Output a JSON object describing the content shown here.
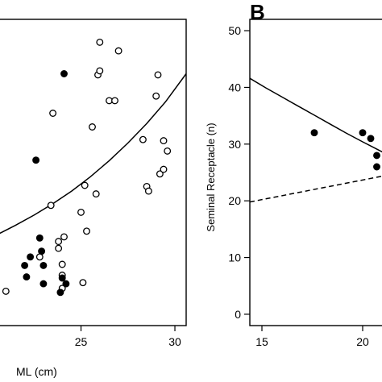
{
  "chart_data": [
    {
      "type": "scatter",
      "panel_label": "",
      "xlabel": "ML (cm)",
      "ylabel": "",
      "xlim": [
        20.6,
        30.6
      ],
      "ylim": [
        -3.5,
        50
      ],
      "xticks": [
        25,
        30
      ],
      "tick_labels_x": [
        "25",
        "30"
      ],
      "series": [
        {
          "marker": "open-circle",
          "points": [
            [
              21.0,
              2.5
            ],
            [
              22.8,
              8.5
            ],
            [
              23.4,
              17.5
            ],
            [
              24.1,
              12.0
            ],
            [
              24.0,
              5.3
            ],
            [
              23.5,
              33.6
            ],
            [
              23.8,
              10.0
            ],
            [
              23.8,
              11.2
            ],
            [
              24.0,
              7.2
            ],
            [
              24.0,
              3.0
            ],
            [
              25.1,
              4.0
            ],
            [
              25.2,
              21.0
            ],
            [
              25.0,
              16.3
            ],
            [
              25.3,
              13.0
            ],
            [
              25.6,
              31.2
            ],
            [
              25.8,
              19.5
            ],
            [
              25.9,
              40.3
            ],
            [
              26.0,
              46.0
            ],
            [
              26.0,
              41.0
            ],
            [
              26.5,
              35.8
            ],
            [
              26.8,
              35.8
            ],
            [
              27.0,
              44.5
            ],
            [
              28.3,
              29.0
            ],
            [
              29.0,
              36.6
            ],
            [
              29.1,
              40.3
            ],
            [
              28.5,
              20.8
            ],
            [
              28.6,
              20.0
            ],
            [
              29.2,
              23.0
            ],
            [
              29.4,
              23.8
            ],
            [
              29.6,
              27.0
            ],
            [
              29.4,
              28.8
            ]
          ]
        },
        {
          "marker": "filled-circle",
          "points": [
            [
              22.6,
              25.4
            ],
            [
              24.1,
              40.5
            ],
            [
              22.8,
              11.8
            ],
            [
              22.9,
              9.5
            ],
            [
              22.0,
              7.0
            ],
            [
              22.1,
              5.0
            ],
            [
              23.0,
              7.0
            ],
            [
              23.9,
              2.3
            ],
            [
              23.0,
              3.8
            ],
            [
              24.0,
              4.8
            ],
            [
              24.2,
              3.8
            ],
            [
              22.3,
              8.5
            ]
          ]
        }
      ],
      "curves": [
        {
          "style": "solid",
          "points": [
            [
              20.6,
              12.5
            ],
            [
              21.5,
              14.0
            ],
            [
              22.5,
              15.8
            ],
            [
              23.5,
              17.8
            ],
            [
              24.5,
              20.0
            ],
            [
              25.5,
              22.5
            ],
            [
              26.5,
              25.3
            ],
            [
              27.5,
              28.4
            ],
            [
              28.5,
              31.8
            ],
            [
              29.5,
              35.6
            ],
            [
              30.6,
              40.5
            ]
          ]
        }
      ]
    },
    {
      "type": "scatter",
      "panel_label": "B",
      "xlabel": "",
      "ylabel": "Seminal Receptacle (n)",
      "xlim": [
        14.4,
        21.2
      ],
      "ylim": [
        -2,
        52
      ],
      "yticks": [
        0,
        10,
        20,
        30,
        40,
        50
      ],
      "tick_labels_y": [
        "0",
        "10",
        "20",
        "30",
        "40",
        "50"
      ],
      "xticks": [
        15,
        20
      ],
      "tick_labels_x": [
        "15",
        "20"
      ],
      "series": [
        {
          "marker": "filled-circle",
          "points": [
            [
              17.6,
              32.0
            ],
            [
              20.0,
              32.0
            ],
            [
              20.4,
              31.0
            ],
            [
              20.7,
              28.0
            ],
            [
              20.7,
              26.0
            ]
          ]
        }
      ],
      "curves": [
        {
          "style": "solid",
          "points": [
            [
              14.4,
              41.6
            ],
            [
              15.2,
              39.9
            ],
            [
              16.0,
              38.3
            ],
            [
              16.8,
              36.7
            ],
            [
              17.6,
              35.1
            ],
            [
              18.4,
              33.5
            ],
            [
              19.2,
              31.9
            ],
            [
              20.0,
              30.4
            ],
            [
              20.6,
              29.3
            ],
            [
              21.2,
              28.2
            ]
          ]
        },
        {
          "style": "dashed",
          "points": [
            [
              14.4,
              19.8
            ],
            [
              21.2,
              24.5
            ]
          ]
        }
      ]
    }
  ]
}
